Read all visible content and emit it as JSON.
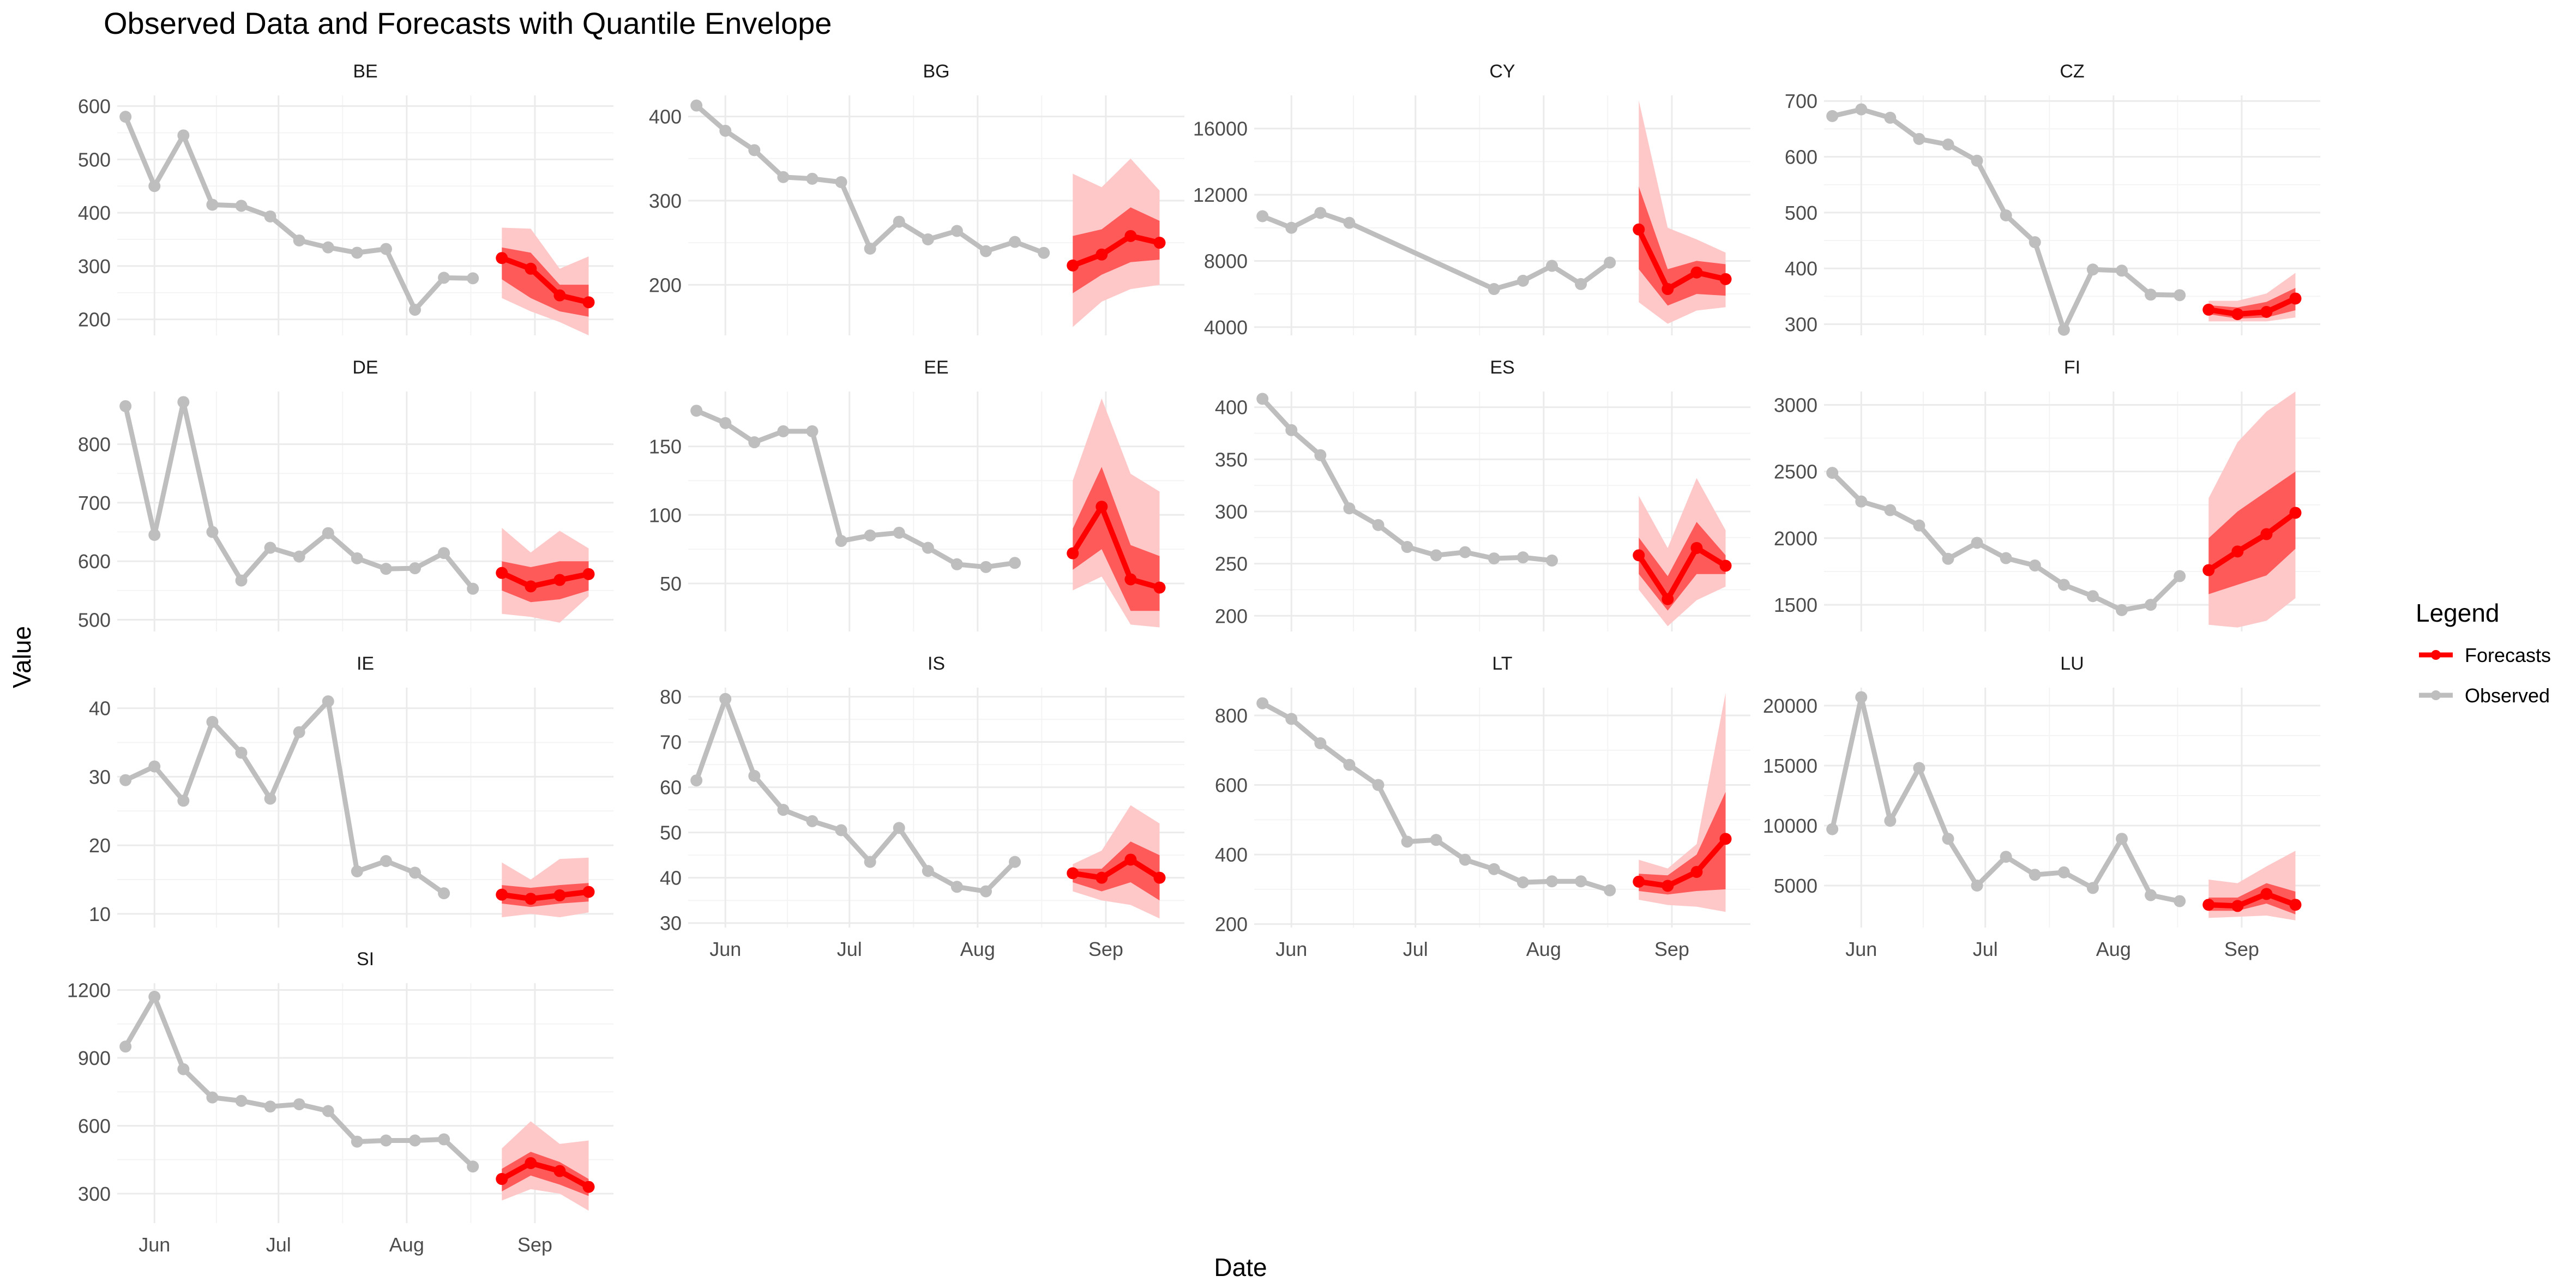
{
  "chart_data": {
    "type": "line",
    "title": "Observed Data and Forecasts with Quantile Envelope",
    "xlabel": "Date",
    "ylabel": "Value",
    "legend": {
      "title": "Legend",
      "placement": "right",
      "entries": [
        {
          "label": "Forecasts",
          "color": "#ff0000"
        },
        {
          "label": "Observed",
          "color": "#bebebe"
        }
      ]
    },
    "colors": {
      "observed": "#bebebe",
      "forecast": "#ff0000",
      "band_inner": "#ff5a5a",
      "band_outer": "#ffc8c8"
    },
    "x_ticks": [
      {
        "label": "Jun",
        "date": "2023-06-01"
      },
      {
        "label": "Jul",
        "date": "2023-07-01"
      },
      {
        "label": "Aug",
        "date": "2023-08-01"
      },
      {
        "label": "Sep",
        "date": "2023-09-01"
      }
    ],
    "x_range": [
      "2023-05-23",
      "2023-09-20"
    ],
    "observed_dates": [
      "2023-05-25",
      "2023-06-01",
      "2023-06-08",
      "2023-06-15",
      "2023-06-22",
      "2023-06-29",
      "2023-07-06",
      "2023-07-13",
      "2023-07-20",
      "2023-07-27",
      "2023-08-03",
      "2023-08-10",
      "2023-08-17"
    ],
    "forecast_dates": [
      "2023-08-24",
      "2023-08-31",
      "2023-09-07",
      "2023-09-14"
    ],
    "panels": [
      {
        "name": "BE",
        "ylim": [
          170,
          620
        ],
        "yticks": [
          200,
          300,
          400,
          500,
          600
        ],
        "observed": [
          [
            0,
            580
          ],
          [
            1,
            450
          ],
          [
            2,
            545
          ],
          [
            3,
            415
          ],
          [
            4,
            413
          ],
          [
            5,
            393
          ],
          [
            6,
            348
          ],
          [
            7,
            335
          ],
          [
            8,
            325
          ],
          [
            9,
            332
          ],
          [
            10,
            218
          ],
          [
            11,
            278
          ],
          [
            12,
            277
          ]
        ],
        "forecast": [
          315,
          295,
          245,
          232
        ],
        "inner_lo": [
          275,
          240,
          215,
          205
        ],
        "inner_hi": [
          335,
          325,
          265,
          265
        ],
        "outer_lo": [
          240,
          215,
          195,
          170
        ],
        "outer_hi": [
          372,
          370,
          295,
          318
        ]
      },
      {
        "name": "BG",
        "ylim": [
          140,
          425
        ],
        "yticks": [
          200,
          300,
          400
        ],
        "observed": [
          [
            0,
            413
          ],
          [
            1,
            383
          ],
          [
            2,
            360
          ],
          [
            3,
            328
          ],
          [
            4,
            326
          ],
          [
            5,
            322
          ],
          [
            6,
            243
          ],
          [
            7,
            275
          ],
          [
            8,
            254
          ],
          [
            9,
            264
          ],
          [
            10,
            240
          ],
          [
            11,
            251
          ],
          [
            12,
            238
          ]
        ],
        "forecast": [
          223,
          236,
          258,
          250
        ],
        "inner_lo": [
          190,
          212,
          227,
          230
        ],
        "inner_hi": [
          258,
          266,
          292,
          276
        ],
        "outer_lo": [
          150,
          180,
          195,
          200
        ],
        "outer_hi": [
          332,
          316,
          350,
          312
        ]
      },
      {
        "name": "CY",
        "ylim": [
          3500,
          18000
        ],
        "yticks": [
          4000,
          8000,
          12000,
          16000
        ],
        "observed": [
          [
            0,
            10700
          ],
          [
            1,
            10000
          ],
          [
            2,
            10900
          ],
          [
            3,
            10300
          ],
          [
            8,
            6300
          ],
          [
            9,
            6800
          ],
          [
            10,
            7700
          ],
          [
            11,
            6600
          ],
          [
            12,
            7900
          ]
        ],
        "forecast": [
          9900,
          6300,
          7300,
          6900
        ],
        "inner_lo": [
          7500,
          5300,
          6000,
          5900
        ],
        "inner_hi": [
          12500,
          7500,
          8000,
          7800
        ],
        "outer_lo": [
          5500,
          4200,
          5000,
          5200
        ],
        "outer_hi": [
          17700,
          10000,
          9300,
          8500
        ]
      },
      {
        "name": "CZ",
        "ylim": [
          280,
          710
        ],
        "yticks": [
          300,
          400,
          500,
          600,
          700
        ],
        "observed": [
          [
            0,
            673
          ],
          [
            1,
            685
          ],
          [
            2,
            670
          ],
          [
            3,
            632
          ],
          [
            4,
            622
          ],
          [
            5,
            593
          ],
          [
            6,
            495
          ],
          [
            7,
            447
          ],
          [
            8,
            290
          ],
          [
            9,
            398
          ],
          [
            10,
            396
          ],
          [
            11,
            353
          ],
          [
            12,
            352
          ]
        ],
        "forecast": [
          326,
          318,
          322,
          346
        ],
        "inner_lo": [
          318,
          310,
          312,
          325
        ],
        "inner_hi": [
          334,
          330,
          340,
          365
        ],
        "outer_lo": [
          305,
          305,
          305,
          312
        ],
        "outer_hi": [
          342,
          342,
          355,
          392
        ]
      },
      {
        "name": "DE",
        "ylim": [
          480,
          890
        ],
        "yticks": [
          500,
          600,
          700,
          800
        ],
        "observed": [
          [
            0,
            865
          ],
          [
            1,
            645
          ],
          [
            2,
            872
          ],
          [
            3,
            650
          ],
          [
            4,
            567
          ],
          [
            5,
            623
          ],
          [
            6,
            608
          ],
          [
            7,
            648
          ],
          [
            8,
            605
          ],
          [
            9,
            587
          ],
          [
            10,
            588
          ],
          [
            11,
            614
          ],
          [
            12,
            553
          ]
        ],
        "forecast": [
          580,
          557,
          568,
          578
        ],
        "inner_lo": [
          550,
          530,
          535,
          550
        ],
        "inner_hi": [
          600,
          590,
          600,
          600
        ],
        "outer_lo": [
          510,
          505,
          495,
          540
        ],
        "outer_hi": [
          657,
          615,
          652,
          622
        ]
      },
      {
        "name": "EE",
        "ylim": [
          15,
          190
        ],
        "yticks": [
          50,
          100,
          150
        ],
        "observed": [
          [
            0,
            176
          ],
          [
            1,
            167
          ],
          [
            2,
            153
          ],
          [
            3,
            161
          ],
          [
            4,
            161
          ],
          [
            5,
            81
          ],
          [
            6,
            85
          ],
          [
            7,
            87
          ],
          [
            8,
            76
          ],
          [
            9,
            64
          ],
          [
            10,
            62
          ],
          [
            11,
            65
          ]
        ],
        "forecast": [
          72,
          106,
          53,
          47
        ],
        "inner_lo": [
          60,
          75,
          30,
          30
        ],
        "inner_hi": [
          90,
          135,
          78,
          70
        ],
        "outer_lo": [
          45,
          55,
          20,
          18
        ],
        "outer_hi": [
          125,
          185,
          130,
          117
        ]
      },
      {
        "name": "ES",
        "ylim": [
          185,
          415
        ],
        "yticks": [
          200,
          250,
          300,
          350,
          400
        ],
        "observed": [
          [
            0,
            408
          ],
          [
            1,
            378
          ],
          [
            2,
            354
          ],
          [
            3,
            303
          ],
          [
            4,
            287
          ],
          [
            5,
            266
          ],
          [
            6,
            258
          ],
          [
            7,
            261
          ],
          [
            8,
            255
          ],
          [
            9,
            256
          ],
          [
            10,
            253
          ]
        ],
        "forecast": [
          258,
          216,
          265,
          248
        ],
        "inner_lo": [
          240,
          205,
          240,
          240
        ],
        "inner_hi": [
          275,
          238,
          290,
          258
        ],
        "outer_lo": [
          225,
          190,
          215,
          228
        ],
        "outer_hi": [
          315,
          265,
          332,
          282
        ]
      },
      {
        "name": "FI",
        "ylim": [
          1300,
          3100
        ],
        "yticks": [
          1500,
          2000,
          2500,
          3000
        ],
        "observed": [
          [
            0,
            2490
          ],
          [
            1,
            2275
          ],
          [
            2,
            2210
          ],
          [
            3,
            2095
          ],
          [
            4,
            1845
          ],
          [
            5,
            1965
          ],
          [
            6,
            1850
          ],
          [
            7,
            1795
          ],
          [
            8,
            1650
          ],
          [
            9,
            1565
          ],
          [
            10,
            1460
          ],
          [
            11,
            1500
          ],
          [
            12,
            1715
          ]
        ],
        "forecast": [
          1760,
          1900,
          2030,
          2190
        ],
        "inner_lo": [
          1580,
          1650,
          1720,
          1920
        ],
        "inner_hi": [
          2000,
          2200,
          2350,
          2500
        ],
        "outer_lo": [
          1350,
          1330,
          1380,
          1550
        ],
        "outer_hi": [
          2300,
          2720,
          2950,
          3100
        ]
      },
      {
        "name": "IE",
        "ylim": [
          8,
          43
        ],
        "yticks": [
          10,
          20,
          30,
          40
        ],
        "observed": [
          [
            0,
            29.5
          ],
          [
            1,
            31.5
          ],
          [
            2,
            26.5
          ],
          [
            3,
            38
          ],
          [
            4,
            33.5
          ],
          [
            5,
            26.8
          ],
          [
            6,
            36.5
          ],
          [
            7,
            41
          ],
          [
            8,
            16.2
          ],
          [
            9,
            17.7
          ],
          [
            10,
            16
          ],
          [
            11,
            13
          ]
        ],
        "forecast": [
          12.8,
          12.2,
          12.7,
          13.2
        ],
        "inner_lo": [
          11.5,
          11,
          11.5,
          11.8
        ],
        "inner_hi": [
          14.2,
          13.8,
          14.2,
          14.5
        ],
        "outer_lo": [
          9.5,
          10,
          9.5,
          10.2
        ],
        "outer_hi": [
          17.5,
          15,
          18,
          18.2
        ]
      },
      {
        "name": "IS",
        "ylim": [
          29,
          82
        ],
        "yticks": [
          30,
          40,
          50,
          60,
          70,
          80
        ],
        "observed": [
          [
            0,
            61.5
          ],
          [
            1,
            79.5
          ],
          [
            2,
            62.5
          ],
          [
            3,
            55
          ],
          [
            4,
            52.5
          ],
          [
            5,
            50.5
          ],
          [
            6,
            43.5
          ],
          [
            7,
            51
          ],
          [
            8,
            41.5
          ],
          [
            9,
            38
          ],
          [
            10,
            37
          ],
          [
            11,
            43.5
          ]
        ],
        "forecast": [
          41,
          40,
          44,
          40
        ],
        "inner_lo": [
          39,
          37,
          39,
          35
        ],
        "inner_hi": [
          42,
          42,
          48,
          45
        ],
        "outer_lo": [
          37,
          35,
          34,
          31
        ],
        "outer_hi": [
          43,
          46,
          56,
          52
        ]
      },
      {
        "name": "LT",
        "ylim": [
          190,
          880
        ],
        "yticks": [
          200,
          400,
          600,
          800
        ],
        "observed": [
          [
            0,
            835
          ],
          [
            1,
            790
          ],
          [
            2,
            720
          ],
          [
            3,
            658
          ],
          [
            4,
            600
          ],
          [
            5,
            437
          ],
          [
            6,
            442
          ],
          [
            7,
            385
          ],
          [
            8,
            358
          ],
          [
            9,
            320
          ],
          [
            10,
            323
          ],
          [
            11,
            323
          ],
          [
            12,
            297
          ]
        ],
        "forecast": [
          322,
          310,
          350,
          445
        ],
        "inner_lo": [
          295,
          285,
          295,
          300
        ],
        "inner_hi": [
          345,
          340,
          400,
          580
        ],
        "outer_lo": [
          270,
          255,
          250,
          235
        ],
        "outer_hi": [
          385,
          360,
          430,
          865
        ]
      },
      {
        "name": "LU",
        "ylim": [
          1500,
          21500
        ],
        "yticks": [
          5000,
          10000,
          15000,
          20000
        ],
        "observed": [
          [
            0,
            9700
          ],
          [
            1,
            20700
          ],
          [
            2,
            10400
          ],
          [
            3,
            14800
          ],
          [
            4,
            8900
          ],
          [
            5,
            5000
          ],
          [
            6,
            7400
          ],
          [
            7,
            5900
          ],
          [
            8,
            6100
          ],
          [
            9,
            4800
          ],
          [
            10,
            8900
          ],
          [
            11,
            4200
          ],
          [
            12,
            3700
          ]
        ],
        "forecast": [
          3400,
          3300,
          4300,
          3400
        ],
        "inner_lo": [
          2900,
          2900,
          3500,
          2600
        ],
        "inner_hi": [
          4000,
          4000,
          5200,
          4500
        ],
        "outer_lo": [
          2300,
          2400,
          2500,
          2100
        ],
        "outer_hi": [
          5500,
          5200,
          6600,
          7900
        ]
      },
      {
        "name": "SI",
        "ylim": [
          170,
          1230
        ],
        "yticks": [
          300,
          600,
          900,
          1200
        ],
        "observed": [
          [
            0,
            950
          ],
          [
            1,
            1170
          ],
          [
            2,
            850
          ],
          [
            3,
            725
          ],
          [
            4,
            710
          ],
          [
            5,
            685
          ],
          [
            6,
            695
          ],
          [
            7,
            665
          ],
          [
            8,
            530
          ],
          [
            9,
            535
          ],
          [
            10,
            535
          ],
          [
            11,
            540
          ],
          [
            12,
            420
          ]
        ],
        "forecast": [
          365,
          435,
          400,
          330
        ],
        "inner_lo": [
          310,
          380,
          340,
          290
        ],
        "inner_hi": [
          410,
          485,
          440,
          365
        ],
        "outer_lo": [
          270,
          320,
          300,
          225
        ],
        "outer_hi": [
          500,
          620,
          520,
          535
        ]
      }
    ]
  }
}
